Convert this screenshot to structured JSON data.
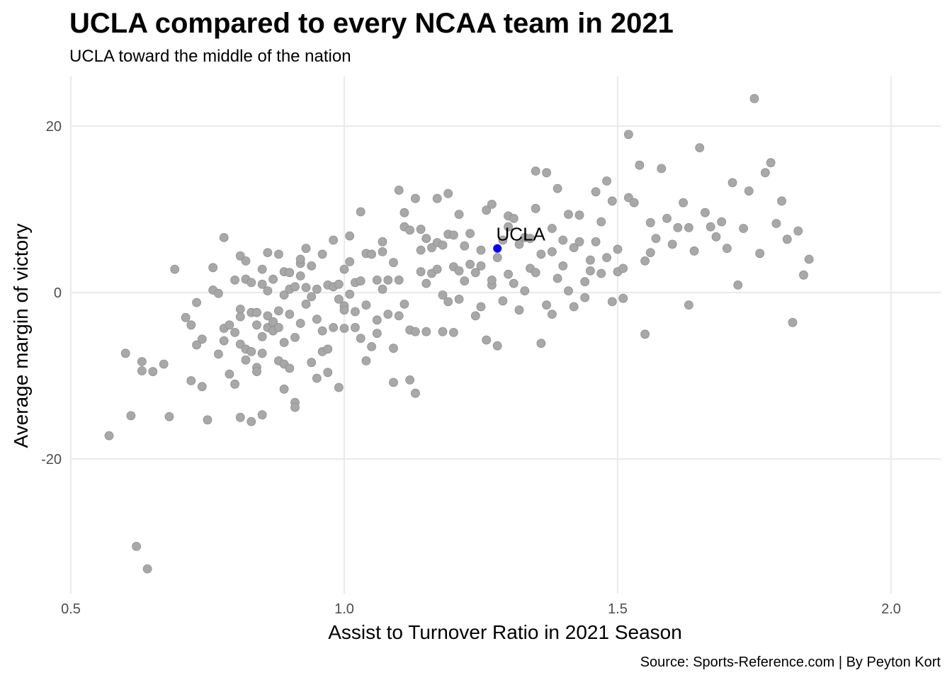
{
  "chart_data": {
    "type": "scatter",
    "title": "UCLA compared to every NCAA team in 2021",
    "subtitle": "UCLA toward the middle of the nation",
    "xlabel": "Assist to Turnover Ratio in 2021 Season",
    "ylabel": "Average margin of victory",
    "caption": "Source: Sports-Reference.com | By Peyton Kort",
    "xlim": [
      0.5,
      2.1
    ],
    "ylim": [
      -35.5,
      26
    ],
    "x_ticks": [
      {
        "value": 0.5,
        "label": "0.5"
      },
      {
        "value": 1.0,
        "label": "1.0"
      },
      {
        "value": 1.5,
        "label": "1.5"
      },
      {
        "value": 2.0,
        "label": "2.0"
      }
    ],
    "y_ticks": [
      {
        "value": 20,
        "label": "20"
      },
      {
        "value": 0,
        "label": "0"
      },
      {
        "value": -20,
        "label": "-20"
      }
    ],
    "grid": true,
    "legend": "none",
    "colors": {
      "teams": "#a8a8a8",
      "highlight": "#0000ff"
    },
    "highlight": {
      "label": "UCLA",
      "x": 1.28,
      "y": 5.3
    },
    "points": [
      [
        0.57,
        -17.2
      ],
      [
        0.6,
        -7.3
      ],
      [
        0.61,
        -14.8
      ],
      [
        0.62,
        -30.5
      ],
      [
        0.63,
        -8.3
      ],
      [
        0.63,
        -9.4
      ],
      [
        0.64,
        -33.2
      ],
      [
        0.65,
        -9.5
      ],
      [
        0.67,
        -8.6
      ],
      [
        0.68,
        -14.9
      ],
      [
        0.69,
        2.8
      ],
      [
        0.71,
        -3
      ],
      [
        0.72,
        -3.9
      ],
      [
        0.72,
        -10.6
      ],
      [
        0.73,
        -1.2
      ],
      [
        0.73,
        -6.3
      ],
      [
        0.74,
        -5.6
      ],
      [
        0.74,
        -11.3
      ],
      [
        0.75,
        -15.3
      ],
      [
        0.76,
        3
      ],
      [
        0.76,
        0.3
      ],
      [
        0.77,
        -0.1
      ],
      [
        0.77,
        -7.4
      ],
      [
        0.78,
        -4.3
      ],
      [
        0.78,
        -5.8
      ],
      [
        0.78,
        6.6
      ],
      [
        0.79,
        -3.9
      ],
      [
        0.79,
        -9.8
      ],
      [
        0.8,
        -4.8
      ],
      [
        0.8,
        -11
      ],
      [
        0.8,
        1.5
      ],
      [
        0.81,
        -2
      ],
      [
        0.81,
        -2.9
      ],
      [
        0.81,
        -6.2
      ],
      [
        0.81,
        -15
      ],
      [
        0.81,
        4.4
      ],
      [
        0.82,
        -6.8
      ],
      [
        0.82,
        -8.1
      ],
      [
        0.82,
        3.8
      ],
      [
        0.82,
        1.6
      ],
      [
        0.83,
        -7.1
      ],
      [
        0.83,
        1.2
      ],
      [
        0.83,
        -2.4
      ],
      [
        0.83,
        -15.5
      ],
      [
        0.84,
        -9
      ],
      [
        0.84,
        -9.5
      ],
      [
        0.84,
        -3.9
      ],
      [
        0.84,
        -2.4
      ],
      [
        0.85,
        -5.3
      ],
      [
        0.85,
        -7.3
      ],
      [
        0.85,
        1
      ],
      [
        0.85,
        2.8
      ],
      [
        0.85,
        -14.7
      ],
      [
        0.86,
        4.8
      ],
      [
        0.86,
        -4.2
      ],
      [
        0.86,
        -2.8
      ],
      [
        0.86,
        0.2
      ],
      [
        0.87,
        -3.7
      ],
      [
        0.87,
        1.6
      ],
      [
        0.87,
        -3.5
      ],
      [
        0.87,
        -4.6
      ],
      [
        0.88,
        -2.2
      ],
      [
        0.88,
        -4.2
      ],
      [
        0.88,
        4.6
      ],
      [
        0.88,
        -8.2
      ],
      [
        0.89,
        -6
      ],
      [
        0.89,
        -11.6
      ],
      [
        0.89,
        2.5
      ],
      [
        0.89,
        -0.3
      ],
      [
        0.89,
        -8.6
      ],
      [
        0.9,
        0.4
      ],
      [
        0.9,
        -2.6
      ],
      [
        0.9,
        2.4
      ],
      [
        0.9,
        -9.1
      ],
      [
        0.91,
        -5.4
      ],
      [
        0.91,
        0.7
      ],
      [
        0.91,
        -13.2
      ],
      [
        0.91,
        -13.8
      ],
      [
        0.92,
        3.5
      ],
      [
        0.92,
        2
      ],
      [
        0.92,
        -3.7
      ],
      [
        0.92,
        4
      ],
      [
        0.93,
        5.3
      ],
      [
        0.93,
        -1.4
      ],
      [
        0.93,
        0.6
      ],
      [
        0.94,
        -0.5
      ],
      [
        0.94,
        -8.4
      ],
      [
        0.94,
        3.2
      ],
      [
        0.95,
        -3.2
      ],
      [
        0.95,
        -10.3
      ],
      [
        0.95,
        0.4
      ],
      [
        0.96,
        -7.1
      ],
      [
        0.96,
        -4.6
      ],
      [
        0.96,
        4.6
      ],
      [
        0.97,
        0.9
      ],
      [
        0.97,
        -9.6
      ],
      [
        0.97,
        -6.8
      ],
      [
        0.98,
        -4.2
      ],
      [
        0.98,
        0.7
      ],
      [
        0.98,
        6.3
      ],
      [
        0.99,
        -0.8
      ],
      [
        0.99,
        -11.4
      ],
      [
        0.99,
        1
      ],
      [
        1,
        -1.6
      ],
      [
        1,
        2.8
      ],
      [
        1,
        -2.1
      ],
      [
        1,
        -4.3
      ],
      [
        1.01,
        -0.2
      ],
      [
        1.01,
        3.7
      ],
      [
        1.01,
        6.8
      ],
      [
        1.02,
        -4.2
      ],
      [
        1.02,
        1.2
      ],
      [
        1.02,
        -2.3
      ],
      [
        1.03,
        -5.5
      ],
      [
        1.03,
        1.4
      ],
      [
        1.03,
        9.7
      ],
      [
        1.04,
        -1.5
      ],
      [
        1.04,
        4.7
      ],
      [
        1.04,
        -8.2
      ],
      [
        1.05,
        -6.5
      ],
      [
        1.05,
        4.6
      ],
      [
        1.06,
        -4.9
      ],
      [
        1.06,
        -3.3
      ],
      [
        1.06,
        1.5
      ],
      [
        1.07,
        0.4
      ],
      [
        1.07,
        4.9
      ],
      [
        1.07,
        6.1
      ],
      [
        1.08,
        -2.6
      ],
      [
        1.08,
        1.5
      ],
      [
        1.09,
        -10.8
      ],
      [
        1.09,
        -6.7
      ],
      [
        1.09,
        3.6
      ],
      [
        1.1,
        -2.8
      ],
      [
        1.1,
        12.3
      ],
      [
        1.1,
        1.5
      ],
      [
        1.11,
        7.9
      ],
      [
        1.11,
        9.6
      ],
      [
        1.11,
        -1.4
      ],
      [
        1.12,
        7.5
      ],
      [
        1.12,
        -4.5
      ],
      [
        1.12,
        -10.5
      ],
      [
        1.13,
        11.3
      ],
      [
        1.13,
        -12.1
      ],
      [
        1.13,
        -4.7
      ],
      [
        1.14,
        5.1
      ],
      [
        1.14,
        2.5
      ],
      [
        1.14,
        7.6
      ],
      [
        1.15,
        -4.7
      ],
      [
        1.15,
        6.5
      ],
      [
        1.15,
        1.1
      ],
      [
        1.16,
        5.4
      ],
      [
        1.16,
        2.3
      ],
      [
        1.17,
        6
      ],
      [
        1.17,
        2.8
      ],
      [
        1.17,
        11.3
      ],
      [
        1.18,
        5.7
      ],
      [
        1.18,
        -4.7
      ],
      [
        1.18,
        -0.3
      ],
      [
        1.19,
        7
      ],
      [
        1.19,
        -1.1
      ],
      [
        1.19,
        11.9
      ],
      [
        1.2,
        6.9
      ],
      [
        1.2,
        3.1
      ],
      [
        1.2,
        -4.8
      ],
      [
        1.21,
        2.6
      ],
      [
        1.21,
        9.4
      ],
      [
        1.21,
        -0.8
      ],
      [
        1.22,
        5.6
      ],
      [
        1.22,
        1.4
      ],
      [
        1.23,
        3.4
      ],
      [
        1.23,
        7.1
      ],
      [
        1.24,
        2.4
      ],
      [
        1.24,
        -2.8
      ],
      [
        1.25,
        -1.7
      ],
      [
        1.25,
        5.1
      ],
      [
        1.25,
        3.2
      ],
      [
        1.26,
        9.9
      ],
      [
        1.26,
        -5.7
      ],
      [
        1.27,
        10.6
      ],
      [
        1.27,
        0.9
      ],
      [
        1.27,
        1.5
      ],
      [
        1.28,
        -6.4
      ],
      [
        1.28,
        4.2
      ],
      [
        1.29,
        -1
      ],
      [
        1.29,
        6.3
      ],
      [
        1.3,
        9.2
      ],
      [
        1.3,
        2.2
      ],
      [
        1.3,
        7.9
      ],
      [
        1.31,
        8.9
      ],
      [
        1.31,
        1.1
      ],
      [
        1.32,
        5.8
      ],
      [
        1.32,
        -2.1
      ],
      [
        1.33,
        6.6
      ],
      [
        1.33,
        0.2
      ],
      [
        1.34,
        6.5
      ],
      [
        1.34,
        2.9
      ],
      [
        1.35,
        14.6
      ],
      [
        1.35,
        10.1
      ],
      [
        1.35,
        2.4
      ],
      [
        1.36,
        4.6
      ],
      [
        1.36,
        -6.1
      ],
      [
        1.37,
        14.4
      ],
      [
        1.37,
        -1.5
      ],
      [
        1.38,
        7.7
      ],
      [
        1.38,
        -2.6
      ],
      [
        1.38,
        4.9
      ],
      [
        1.39,
        12.5
      ],
      [
        1.39,
        1.7
      ],
      [
        1.4,
        6.3
      ],
      [
        1.4,
        3.2
      ],
      [
        1.41,
        0.2
      ],
      [
        1.41,
        9.4
      ],
      [
        1.42,
        -1.7
      ],
      [
        1.42,
        5.4
      ],
      [
        1.43,
        6.1
      ],
      [
        1.43,
        9.3
      ],
      [
        1.44,
        1.3
      ],
      [
        1.44,
        -0.6
      ],
      [
        1.45,
        3.9
      ],
      [
        1.45,
        2.6
      ],
      [
        1.46,
        6.1
      ],
      [
        1.46,
        12.1
      ],
      [
        1.47,
        2.3
      ],
      [
        1.47,
        8.5
      ],
      [
        1.48,
        13.4
      ],
      [
        1.48,
        4.2
      ],
      [
        1.49,
        -1.1
      ],
      [
        1.49,
        11
      ],
      [
        1.5,
        2.5
      ],
      [
        1.5,
        5.2
      ],
      [
        1.51,
        -0.7
      ],
      [
        1.51,
        2.9
      ],
      [
        1.52,
        19
      ],
      [
        1.52,
        11.4
      ],
      [
        1.53,
        10.8
      ],
      [
        1.54,
        15.3
      ],
      [
        1.55,
        -5
      ],
      [
        1.55,
        3.8
      ],
      [
        1.56,
        8.4
      ],
      [
        1.56,
        4.8
      ],
      [
        1.57,
        6.5
      ],
      [
        1.58,
        14.9
      ],
      [
        1.59,
        8.9
      ],
      [
        1.6,
        5.8
      ],
      [
        1.61,
        7.8
      ],
      [
        1.62,
        10.8
      ],
      [
        1.63,
        -1.5
      ],
      [
        1.63,
        7.8
      ],
      [
        1.64,
        5.0
      ],
      [
        1.65,
        17.4
      ],
      [
        1.66,
        9.6
      ],
      [
        1.67,
        7.9
      ],
      [
        1.68,
        6.7
      ],
      [
        1.69,
        8.5
      ],
      [
        1.7,
        5.3
      ],
      [
        1.71,
        13.2
      ],
      [
        1.72,
        0.9
      ],
      [
        1.73,
        7.7
      ],
      [
        1.74,
        12.2
      ],
      [
        1.75,
        23.3
      ],
      [
        1.76,
        4.7
      ],
      [
        1.77,
        14.4
      ],
      [
        1.78,
        15.6
      ],
      [
        1.79,
        8.3
      ],
      [
        1.8,
        11
      ],
      [
        1.81,
        6.4
      ],
      [
        1.82,
        -3.6
      ],
      [
        1.83,
        7.4
      ],
      [
        1.84,
        2.1
      ],
      [
        1.85,
        4.0
      ]
    ]
  }
}
